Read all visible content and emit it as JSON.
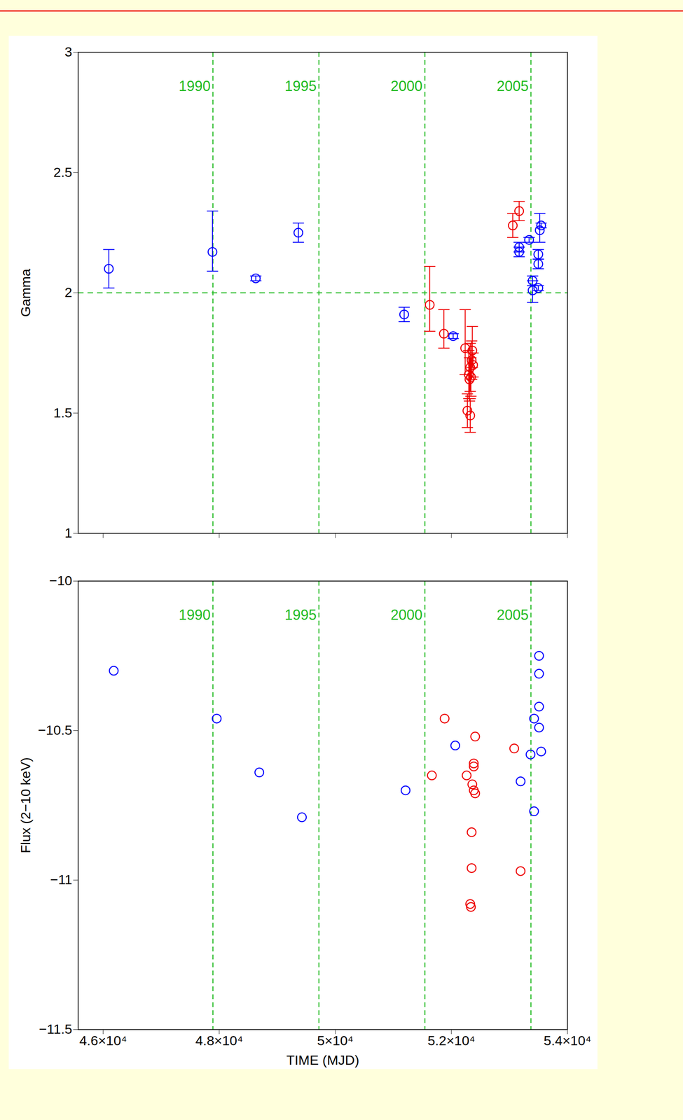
{
  "chart_data": [
    {
      "type": "scatter",
      "y_label": "Gamma",
      "xlim": [
        45570,
        54000
      ],
      "xticks": [
        46000,
        48000,
        50000,
        52000,
        54000
      ],
      "ylim": [
        1,
        3
      ],
      "yticks": [
        1,
        1.5,
        2,
        2.5,
        3
      ],
      "tick_labels": "y",
      "hline": 2,
      "year_markers": [
        {
          "value": 47892,
          "label": "1990"
        },
        {
          "value": 49718,
          "label": "1995"
        },
        {
          "value": 51544,
          "label": "2000"
        },
        {
          "value": 53371,
          "label": "2005"
        }
      ],
      "series": [
        {
          "color": "#0000ff",
          "marker": "open_circle",
          "x": [
            46098,
            47884,
            48630,
            49364,
            51187,
            52031,
            53168,
            53168,
            53339,
            53400,
            53400,
            53498,
            53498,
            53498,
            53523,
            53547
          ],
          "values": [
            2.1,
            2.17,
            2.06,
            2.25,
            1.91,
            1.82,
            2.19,
            2.17,
            2.22,
            2.05,
            2.01,
            2.16,
            2.12,
            2.02,
            2.26,
            2.28
          ],
          "err_minus": [
            0.08,
            0.08,
            0.01,
            0.04,
            0.03,
            0.01,
            0.02,
            0.02,
            0.01,
            0.02,
            0.05,
            0.02,
            0.02,
            0.01,
            0.05,
            0.01
          ],
          "err_plus": [
            0.08,
            0.17,
            0.01,
            0.04,
            0.03,
            0.01,
            0.02,
            0.02,
            0.01,
            0.02,
            0.04,
            0.02,
            0.02,
            0.01,
            0.07,
            0.01
          ]
        },
        {
          "color": "#ee0000",
          "marker": "open_circle",
          "x": [
            51627,
            51871,
            52238,
            52276,
            52300,
            52312,
            52325,
            52325,
            52337,
            52349,
            52361,
            52374,
            53058,
            53168
          ],
          "values": [
            1.95,
            1.83,
            1.77,
            1.51,
            1.66,
            1.64,
            1.49,
            1.69,
            1.65,
            1.72,
            1.76,
            1.7,
            2.28,
            2.34
          ],
          "err_minus": [
            0.11,
            0.06,
            0.11,
            0.07,
            0.1,
            0.09,
            0.07,
            0.1,
            0.08,
            0.08,
            0.07,
            0.05,
            0.05,
            0.04
          ],
          "err_plus": [
            0.16,
            0.1,
            0.16,
            0.07,
            0.1,
            0.09,
            0.07,
            0.1,
            0.08,
            0.08,
            0.1,
            0.05,
            0.05,
            0.04
          ]
        }
      ]
    },
    {
      "type": "scatter",
      "x_label": "TIME (MJD)",
      "y_label": "Flux (2−10 keV)",
      "xlim": [
        45570,
        54000
      ],
      "xticks": [
        {
          "value": 46000,
          "label": "4.6×10⁴"
        },
        {
          "value": 48000,
          "label": "4.8×10⁴"
        },
        {
          "value": 50000,
          "label": "5×10⁴"
        },
        {
          "value": 52000,
          "label": "5.2×10⁴"
        },
        {
          "value": 54000,
          "label": "5.4×10⁴"
        }
      ],
      "ylim": [
        -11.5,
        -10
      ],
      "yticks": [
        {
          "value": -10,
          "label": "−10"
        },
        {
          "value": -10.5,
          "label": "−10.5"
        },
        {
          "value": -11,
          "label": "−11"
        },
        {
          "value": -11.5,
          "label": "−11.5"
        }
      ],
      "year_markers": [
        {
          "value": 47892,
          "label": "1990"
        },
        {
          "value": 49718,
          "label": "1995"
        },
        {
          "value": 51544,
          "label": "2000"
        },
        {
          "value": 53371,
          "label": "2005"
        }
      ],
      "series": [
        {
          "color": "#0000ff",
          "marker": "open_circle",
          "x": [
            46183,
            47957,
            48691,
            49425,
            51211,
            52067,
            53193,
            53364,
            53425,
            53425,
            53511,
            53511,
            53511,
            53511,
            53547
          ],
          "values": [
            -10.3,
            -10.46,
            -10.64,
            -10.79,
            -10.7,
            -10.55,
            -10.67,
            -10.58,
            -10.46,
            -10.77,
            -10.25,
            -10.31,
            -10.42,
            -10.49,
            -10.57
          ]
        },
        {
          "color": "#ee0000",
          "marker": "open_circle",
          "x": [
            51664,
            51884,
            52263,
            52410,
            52386,
            52386,
            52361,
            52386,
            52410,
            52349,
            52349,
            52325,
            52337,
            53083,
            53193
          ],
          "values": [
            -10.65,
            -10.46,
            -10.65,
            -10.52,
            -10.61,
            -10.62,
            -10.68,
            -10.7,
            -10.71,
            -10.84,
            -10.96,
            -11.08,
            -11.09,
            -10.56,
            -10.97
          ]
        }
      ]
    }
  ]
}
